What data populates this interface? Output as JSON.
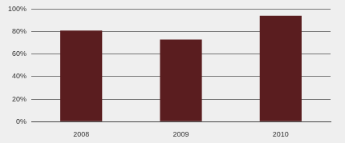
{
  "chart_data": {
    "type": "bar",
    "categories": [
      "2008",
      "2009",
      "2010"
    ],
    "values": [
      81,
      73,
      94
    ],
    "color": "#5a1d1f",
    "ylim": [
      0,
      100
    ],
    "yticks": [
      {
        "value": 0,
        "label": "0%"
      },
      {
        "value": 20,
        "label": "20%"
      },
      {
        "value": 40,
        "label": "40%"
      },
      {
        "value": 60,
        "label": "60%"
      },
      {
        "value": 80,
        "label": "80%"
      },
      {
        "value": 100,
        "label": "100%"
      }
    ],
    "grid": true
  }
}
